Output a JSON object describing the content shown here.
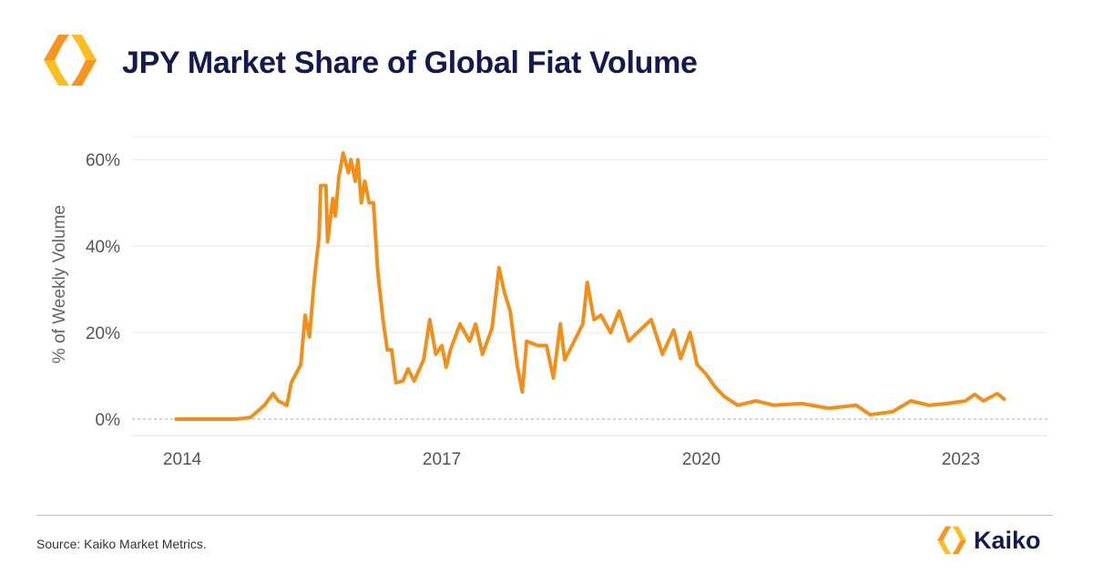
{
  "header": {
    "title": "JPY Market Share of Global Fiat Volume"
  },
  "footer": {
    "source": "Source: Kaiko Market Metrics.",
    "brand": "Kaiko"
  },
  "colors": {
    "line": "#f0901c",
    "title": "#141a4f",
    "logo_light": "#fbbf24",
    "logo_dark": "#f7791e"
  },
  "chart_data": {
    "type": "line",
    "title": "JPY Market Share of Global Fiat Volume",
    "xlabel": "",
    "ylabel": "% of Weekly Volume",
    "xlim": [
      2013.42,
      2024.0
    ],
    "ylim": [
      -3.8,
      65.3
    ],
    "xticks": [
      2014,
      2017,
      2020,
      2023
    ],
    "xtick_labels": [
      "2014",
      "2017",
      "2020",
      "2023"
    ],
    "yticks": [
      0,
      20,
      40,
      60
    ],
    "ytick_labels": [
      "0%",
      "20%",
      "40%",
      "60%"
    ],
    "grid": true,
    "series": [
      {
        "name": "JPY share",
        "x": [
          2013.93,
          2014.63,
          2014.79,
          2014.95,
          2015.05,
          2015.11,
          2015.21,
          2015.26,
          2015.37,
          2015.42,
          2015.47,
          2015.53,
          2015.58,
          2015.6,
          2015.66,
          2015.68,
          2015.74,
          2015.77,
          2015.81,
          2015.86,
          2015.92,
          2015.95,
          2016.0,
          2016.03,
          2016.07,
          2016.11,
          2016.16,
          2016.21,
          2016.26,
          2016.32,
          2016.37,
          2016.42,
          2016.47,
          2016.55,
          2016.61,
          2016.68,
          2016.79,
          2016.86,
          2016.93,
          2017.0,
          2017.05,
          2017.1,
          2017.21,
          2017.32,
          2017.39,
          2017.47,
          2017.58,
          2017.66,
          2017.72,
          2017.79,
          2017.87,
          2017.93,
          2017.98,
          2018.11,
          2018.21,
          2018.29,
          2018.37,
          2018.42,
          2018.53,
          2018.63,
          2018.68,
          2018.76,
          2018.84,
          2018.95,
          2019.05,
          2019.16,
          2019.26,
          2019.42,
          2019.55,
          2019.68,
          2019.76,
          2019.87,
          2019.95,
          2020.05,
          2020.16,
          2020.26,
          2020.42,
          2020.63,
          2020.84,
          2021.16,
          2021.47,
          2021.79,
          2021.95,
          2022.21,
          2022.42,
          2022.63,
          2022.84,
          2023.05,
          2023.16,
          2023.26,
          2023.42,
          2023.5
        ],
        "y": [
          0,
          0,
          0.4,
          3.2,
          5.9,
          4.2,
          3.2,
          8.4,
          12.6,
          24,
          19,
          33,
          42,
          54,
          54,
          41,
          51,
          47,
          56,
          61.5,
          57,
          60,
          55,
          60,
          50,
          55,
          50,
          50,
          34,
          23,
          16,
          16,
          8.4,
          8.8,
          11.6,
          8.8,
          13.7,
          23,
          15,
          17,
          12,
          16,
          22,
          18,
          22,
          15,
          21,
          35,
          29.5,
          25,
          12.6,
          6.3,
          18,
          17,
          17,
          9.5,
          22,
          13.7,
          18,
          22,
          31.6,
          23,
          24,
          20,
          25,
          18,
          20,
          23,
          15,
          20.6,
          14,
          20,
          12.6,
          10.5,
          7.4,
          5.3,
          3.2,
          4.2,
          3.2,
          3.6,
          2.5,
          3.2,
          1,
          1.7,
          4.2,
          3.2,
          3.6,
          4.2,
          5.7,
          4.2,
          5.9,
          4.6
        ]
      }
    ]
  }
}
